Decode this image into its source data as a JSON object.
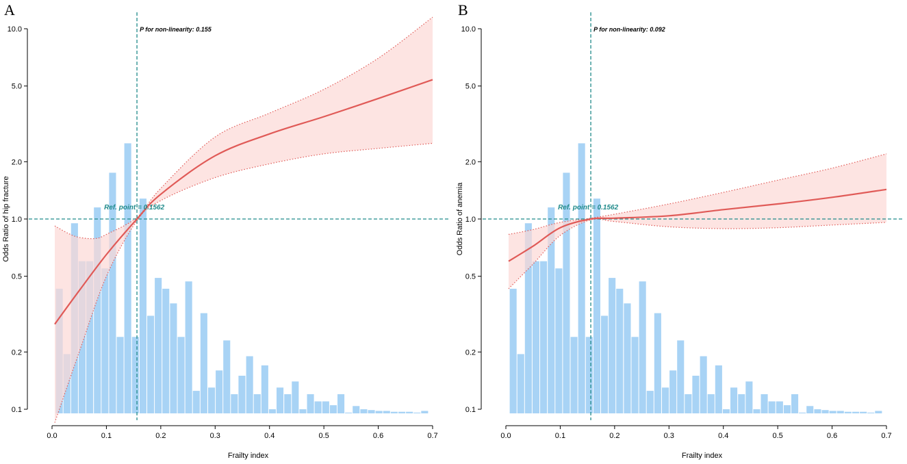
{
  "colors": {
    "bar": "#a8d3f5",
    "curve": "#e05a57",
    "band": "#fcd9d6",
    "band_edge": "#e05a57",
    "ref_line": "#1f8a8a"
  },
  "chart_data": [
    {
      "panel_label": "A",
      "type": "line",
      "subtype": "restricted cubic spline with histogram",
      "xlabel": "Frailty index",
      "ylabel": "Odds Ratio of hip fracture",
      "xlim": [
        -0.03,
        0.73
      ],
      "ylim_log": [
        0.085,
        12.5
      ],
      "x_ticks": [
        0.0,
        0.1,
        0.2,
        0.3,
        0.4,
        0.5,
        0.6,
        0.7
      ],
      "x_tick_labels": [
        "0.0",
        "0.1",
        "0.2",
        "0.3",
        "0.4",
        "0.5",
        "0.6",
        "0.7"
      ],
      "y_ticks": [
        0.1,
        0.2,
        0.5,
        1.0,
        2.0,
        5.0,
        10.0
      ],
      "y_tick_labels": [
        "0.1",
        "0.2",
        "0.5",
        "1.0",
        "2.0",
        "5.0",
        "10.0"
      ],
      "annotation_p": "P for non-linearity: 0.155",
      "annotation_ref": "Ref. point = 0.1562",
      "ref_x": 0.1562,
      "ref_y": 1.0,
      "curve": {
        "x": [
          0.005,
          0.05,
          0.1,
          0.1562,
          0.2,
          0.3,
          0.4,
          0.5,
          0.6,
          0.7
        ],
        "y": [
          0.28,
          0.42,
          0.65,
          1.0,
          1.35,
          2.15,
          2.8,
          3.45,
          4.3,
          5.4
        ]
      },
      "ci_lower": {
        "x": [
          0.005,
          0.05,
          0.1,
          0.1562,
          0.2,
          0.3,
          0.4,
          0.5,
          0.6,
          0.7
        ],
        "y": [
          0.085,
          0.2,
          0.5,
          0.98,
          1.25,
          1.65,
          1.95,
          2.2,
          2.35,
          2.5
        ]
      },
      "ci_upper": {
        "x": [
          0.005,
          0.03,
          0.05,
          0.08,
          0.1,
          0.1562,
          0.2,
          0.3,
          0.4,
          0.5,
          0.6,
          0.7
        ],
        "y": [
          0.92,
          0.84,
          0.8,
          0.79,
          0.83,
          1.02,
          1.45,
          2.7,
          3.6,
          4.8,
          7.0,
          11.5
        ]
      },
      "histogram": {
        "bin_centers": [
          0.014,
          0.028,
          0.042,
          0.056,
          0.07,
          0.084,
          0.098,
          0.112,
          0.126,
          0.14,
          0.154,
          0.168,
          0.182,
          0.196,
          0.21,
          0.224,
          0.238,
          0.252,
          0.266,
          0.28,
          0.294,
          0.308,
          0.322,
          0.336,
          0.35,
          0.364,
          0.378,
          0.392,
          0.406,
          0.42,
          0.434,
          0.448,
          0.462,
          0.476,
          0.49,
          0.504,
          0.518,
          0.532,
          0.546,
          0.56,
          0.574,
          0.588,
          0.602,
          0.616,
          0.63,
          0.644,
          0.658,
          0.672,
          0.686
        ],
        "bar_tops_on_or_axis": [
          0.43,
          0.195,
          0.95,
          0.6,
          0.6,
          1.15,
          0.55,
          1.75,
          0.24,
          2.5,
          0.24,
          1.28,
          0.31,
          0.49,
          0.43,
          0.36,
          0.24,
          0.47,
          0.125,
          0.32,
          0.13,
          0.16,
          0.23,
          0.12,
          0.15,
          0.19,
          0.12,
          0.17,
          0.1,
          0.13,
          0.12,
          0.14,
          0.1,
          0.12,
          0.11,
          0.11,
          0.105,
          0.12,
          0.096,
          0.104,
          0.1,
          0.099,
          0.098,
          0.098,
          0.097,
          0.097,
          0.097,
          0.096,
          0.098
        ]
      }
    },
    {
      "panel_label": "B",
      "type": "line",
      "subtype": "restricted cubic spline with histogram",
      "xlabel": "Frailty index",
      "ylabel": "Odds Ratio of anemia",
      "xlim": [
        -0.03,
        0.73
      ],
      "ylim_log": [
        0.085,
        12.5
      ],
      "x_ticks": [
        0.0,
        0.1,
        0.2,
        0.3,
        0.4,
        0.5,
        0.6,
        0.7
      ],
      "x_tick_labels": [
        "0.0",
        "0.1",
        "0.2",
        "0.3",
        "0.4",
        "0.5",
        "0.6",
        "0.7"
      ],
      "y_ticks": [
        0.1,
        0.2,
        0.5,
        1.0,
        2.0,
        5.0,
        10.0
      ],
      "y_tick_labels": [
        "0.1",
        "0.2",
        "0.5",
        "1.0",
        "2.0",
        "5.0",
        "10.0"
      ],
      "annotation_p": "P for non-linearity: 0.092",
      "annotation_ref": "Ref. point = 0.1562",
      "ref_x": 0.1562,
      "ref_y": 1.0,
      "curve": {
        "x": [
          0.005,
          0.05,
          0.1,
          0.1562,
          0.2,
          0.3,
          0.4,
          0.5,
          0.6,
          0.7
        ],
        "y": [
          0.6,
          0.72,
          0.9,
          1.0,
          1.01,
          1.04,
          1.12,
          1.2,
          1.3,
          1.43
        ]
      },
      "ci_lower": {
        "x": [
          0.005,
          0.05,
          0.1,
          0.1562,
          0.2,
          0.3,
          0.4,
          0.5,
          0.6,
          0.7
        ],
        "y": [
          0.43,
          0.58,
          0.82,
          0.99,
          0.97,
          0.91,
          0.89,
          0.9,
          0.93,
          0.96
        ]
      },
      "ci_upper": {
        "x": [
          0.005,
          0.05,
          0.1,
          0.1562,
          0.2,
          0.3,
          0.4,
          0.5,
          0.6,
          0.7
        ],
        "y": [
          0.83,
          0.88,
          0.96,
          1.01,
          1.06,
          1.2,
          1.38,
          1.6,
          1.85,
          2.2
        ]
      },
      "histogram": {
        "bin_centers": [
          0.014,
          0.028,
          0.042,
          0.056,
          0.07,
          0.084,
          0.098,
          0.112,
          0.126,
          0.14,
          0.154,
          0.168,
          0.182,
          0.196,
          0.21,
          0.224,
          0.238,
          0.252,
          0.266,
          0.28,
          0.294,
          0.308,
          0.322,
          0.336,
          0.35,
          0.364,
          0.378,
          0.392,
          0.406,
          0.42,
          0.434,
          0.448,
          0.462,
          0.476,
          0.49,
          0.504,
          0.518,
          0.532,
          0.546,
          0.56,
          0.574,
          0.588,
          0.602,
          0.616,
          0.63,
          0.644,
          0.658,
          0.672,
          0.686
        ],
        "bar_tops_on_or_axis": [
          0.43,
          0.195,
          0.95,
          0.6,
          0.6,
          1.15,
          0.55,
          1.75,
          0.24,
          2.5,
          0.24,
          1.28,
          0.31,
          0.49,
          0.43,
          0.36,
          0.24,
          0.47,
          0.125,
          0.32,
          0.13,
          0.16,
          0.23,
          0.12,
          0.15,
          0.19,
          0.12,
          0.17,
          0.1,
          0.13,
          0.12,
          0.14,
          0.1,
          0.12,
          0.11,
          0.11,
          0.105,
          0.12,
          0.096,
          0.104,
          0.1,
          0.099,
          0.098,
          0.098,
          0.097,
          0.097,
          0.097,
          0.096,
          0.098
        ]
      }
    }
  ]
}
